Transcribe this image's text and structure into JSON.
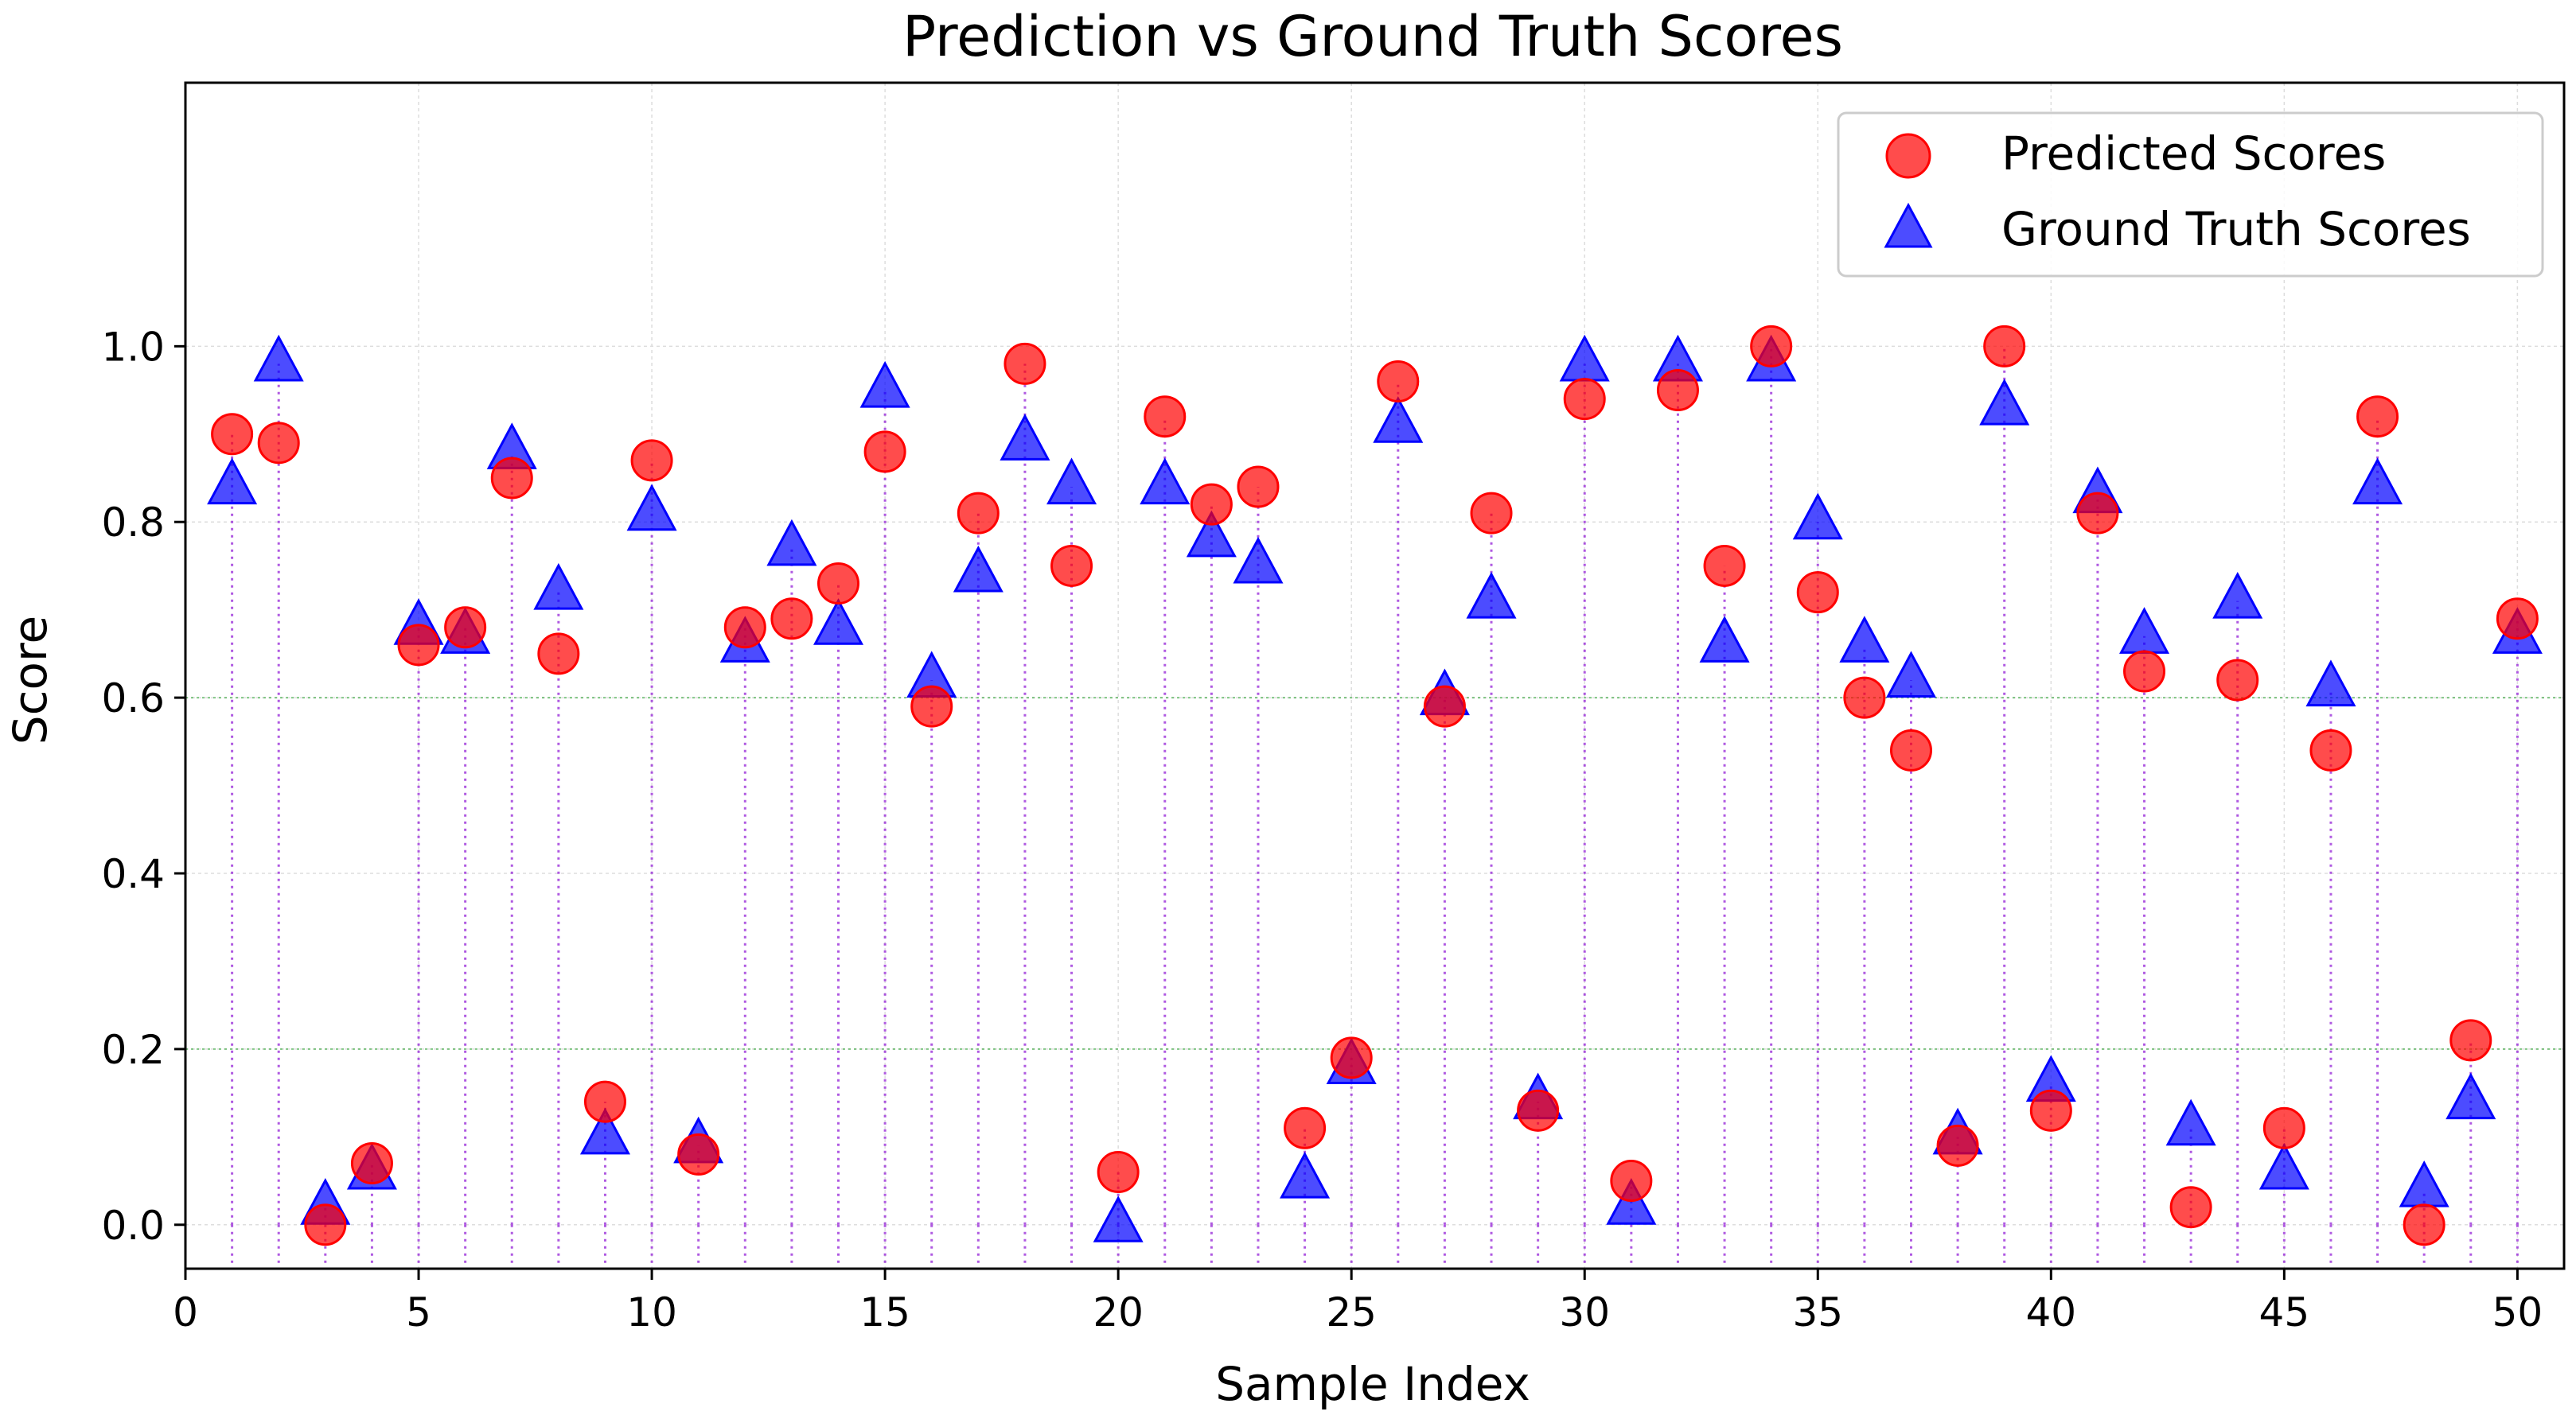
{
  "chart_data": {
    "type": "scatter",
    "title": "Prediction vs Ground Truth Scores",
    "xlabel": "Sample Index",
    "ylabel": "Score",
    "xlim": [
      0,
      51
    ],
    "ylim": [
      -0.05,
      1.3
    ],
    "xticks": [
      "0",
      "5",
      "10",
      "15",
      "20",
      "25",
      "30",
      "35",
      "40",
      "45",
      "50"
    ],
    "yticks": [
      "0.0",
      "0.2",
      "0.4",
      "0.6",
      "0.8",
      "1.0"
    ],
    "grid": true,
    "highlight_lines": [
      0.2,
      0.6
    ],
    "legend_position": "top-right",
    "x": [
      1,
      2,
      3,
      4,
      5,
      6,
      7,
      8,
      9,
      10,
      11,
      12,
      13,
      14,
      15,
      16,
      17,
      18,
      19,
      20,
      21,
      22,
      23,
      24,
      25,
      26,
      27,
      28,
      29,
      30,
      31,
      32,
      33,
      34,
      35,
      36,
      37,
      38,
      39,
      40,
      41,
      42,
      43,
      44,
      45,
      46,
      47,
      48,
      49,
      50
    ],
    "series": [
      {
        "name": "Predicted Scores",
        "marker": "circle",
        "color": "#ff0000",
        "values": [
          0.9,
          0.89,
          0.0,
          0.07,
          0.66,
          0.68,
          0.85,
          0.65,
          0.14,
          0.87,
          0.08,
          0.68,
          0.69,
          0.73,
          0.88,
          0.59,
          0.81,
          0.98,
          0.75,
          0.06,
          0.92,
          0.82,
          0.84,
          0.11,
          0.19,
          0.96,
          0.59,
          0.81,
          0.13,
          0.94,
          0.05,
          0.95,
          0.75,
          1.0,
          0.72,
          0.6,
          0.54,
          0.09,
          1.0,
          0.13,
          0.81,
          0.63,
          0.02,
          0.62,
          0.11,
          0.54,
          0.92,
          0.0,
          0.21,
          0.69
        ]
      },
      {
        "name": "Ground Truth Scores",
        "marker": "triangle",
        "color": "#0000ff",
        "values": [
          0.84,
          0.98,
          0.02,
          0.06,
          0.68,
          0.67,
          0.88,
          0.72,
          0.1,
          0.81,
          0.09,
          0.66,
          0.77,
          0.68,
          0.95,
          0.62,
          0.74,
          0.89,
          0.84,
          0.0,
          0.84,
          0.78,
          0.75,
          0.05,
          0.18,
          0.91,
          0.6,
          0.71,
          0.14,
          0.98,
          0.02,
          0.98,
          0.66,
          0.98,
          0.8,
          0.66,
          0.62,
          0.1,
          0.93,
          0.16,
          0.83,
          0.67,
          0.11,
          0.71,
          0.06,
          0.61,
          0.84,
          0.04,
          0.14,
          0.67
        ]
      }
    ]
  }
}
